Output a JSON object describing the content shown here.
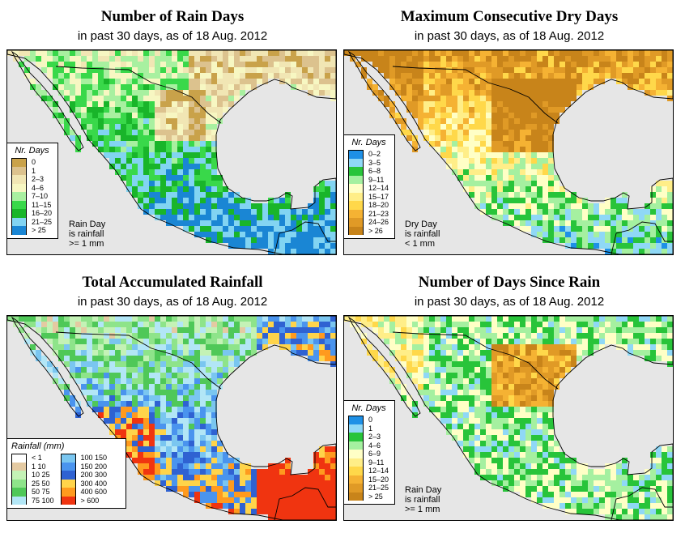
{
  "colors": {
    "ocean": "#e6e6e6",
    "border": "#000000"
  },
  "panels": [
    {
      "title": "Number of Rain Days",
      "subtitle": "in past 30 days, as of  18 Aug. 2012",
      "legend": {
        "title": "Nr. Days",
        "items": [
          {
            "label": "0",
            "color": "#c9a24a"
          },
          {
            "label": "1",
            "color": "#dcc28e"
          },
          {
            "label": "2–3",
            "color": "#f1e6b4"
          },
          {
            "label": "4–6",
            "color": "#f7f7c2"
          },
          {
            "label": "7–10",
            "color": "#a8f0a0"
          },
          {
            "label": "11–15",
            "color": "#39d84a"
          },
          {
            "label": "16–20",
            "color": "#19b52a"
          },
          {
            "label": "21–25",
            "color": "#82d4f2"
          },
          {
            "label": "> 25",
            "color": "#1a86d4"
          }
        ]
      },
      "note": [
        "Rain Day",
        "is rainfall",
        ">= 1 mm"
      ]
    },
    {
      "title": "Maximum Consecutive Dry Days",
      "subtitle": "in past 30 days, as of  18 Aug. 2012",
      "legend": {
        "title": "Nr. Days",
        "items": [
          {
            "label": "0–2",
            "color": "#1e90e6"
          },
          {
            "label": "3–5",
            "color": "#8fd8f6"
          },
          {
            "label": "6–8",
            "color": "#28c43a"
          },
          {
            "label": "9–11",
            "color": "#a5f0a0"
          },
          {
            "label": "12–14",
            "color": "#ffffc6"
          },
          {
            "label": "15–17",
            "color": "#ffee88"
          },
          {
            "label": "18–20",
            "color": "#ffd84a"
          },
          {
            "label": "21–23",
            "color": "#f5b233"
          },
          {
            "label": "24–26",
            "color": "#e09a26"
          },
          {
            "label": "> 26",
            "color": "#c8841a"
          }
        ]
      },
      "note": [
        "Dry Day",
        "is rainfall",
        "< 1 mm"
      ]
    },
    {
      "title": "Total Accumulated Rainfall",
      "subtitle": "in past 30 days, as of  18 Aug. 2012",
      "legend": {
        "title": "Rainfall (mm)",
        "items": [
          {
            "label": "< 1",
            "color": "#ffffff"
          },
          {
            "label": "1   10",
            "color": "#e4caa2"
          },
          {
            "label": "10   25",
            "color": "#c4f2b6"
          },
          {
            "label": "25   50",
            "color": "#8ee48a"
          },
          {
            "label": "50   75",
            "color": "#4fc858"
          },
          {
            "label": "75  100",
            "color": "#b2e6f6"
          },
          {
            "label": "100  150",
            "color": "#7ac6f0"
          },
          {
            "label": "150  200",
            "color": "#4a94ee"
          },
          {
            "label": "200  300",
            "color": "#2f62d2"
          },
          {
            "label": "300  400",
            "color": "#ffd44a"
          },
          {
            "label": "400  600",
            "color": "#ff9a1e"
          },
          {
            "label": "> 600",
            "color": "#f03410"
          }
        ]
      },
      "note": []
    },
    {
      "title": "Number of Days Since Rain",
      "subtitle": "in past 30 days, as of  18 Aug. 2012",
      "legend": {
        "title": "Nr. Days",
        "items": [
          {
            "label": "0",
            "color": "#1e90e6"
          },
          {
            "label": "1",
            "color": "#8fd8f6"
          },
          {
            "label": "2–3",
            "color": "#28c43a"
          },
          {
            "label": "4–6",
            "color": "#a5f0a0"
          },
          {
            "label": "6–9",
            "color": "#ffffc6"
          },
          {
            "label": "9–11",
            "color": "#ffee88"
          },
          {
            "label": "12–14",
            "color": "#ffd84a"
          },
          {
            "label": "15–20",
            "color": "#f5b233"
          },
          {
            "label": "21–25",
            "color": "#e09a26"
          },
          {
            "label": "> 25",
            "color": "#c8841a"
          }
        ]
      },
      "note": [
        "Rain Day",
        "is rainfall",
        ">= 1 mm"
      ]
    }
  ]
}
